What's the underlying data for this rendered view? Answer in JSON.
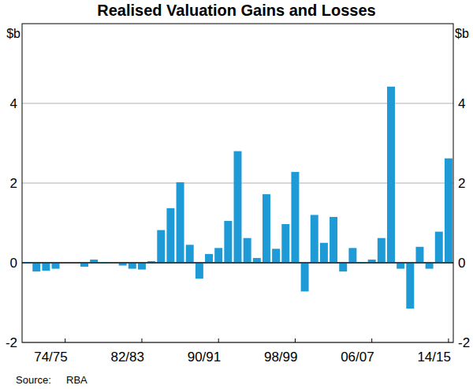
{
  "chart_data": {
    "type": "bar",
    "title": "Realised Valuation Gains and Losses",
    "ylabel": "$b",
    "source_label": "Source:",
    "source": "RBA",
    "categories": [
      null,
      null,
      null,
      null,
      "74/75",
      null,
      null,
      null,
      null,
      null,
      null,
      null,
      "82/83",
      null,
      null,
      null,
      null,
      null,
      null,
      null,
      "90/91",
      null,
      null,
      null,
      null,
      null,
      null,
      null,
      "98/99",
      null,
      null,
      null,
      null,
      null,
      null,
      null,
      "06/07",
      null,
      null,
      null,
      null,
      null,
      null,
      null,
      "14/15"
    ],
    "values": [
      0.02,
      -0.22,
      -0.2,
      -0.15,
      0,
      0,
      -0.1,
      0.08,
      0.02,
      -0.02,
      -0.07,
      -0.15,
      -0.17,
      0.04,
      0.82,
      1.37,
      2.02,
      0.45,
      -0.4,
      0.22,
      0.37,
      1.05,
      2.8,
      0.62,
      0.12,
      1.72,
      0.35,
      0.97,
      2.28,
      -0.72,
      1.2,
      0.5,
      1.15,
      -0.22,
      0.37,
      0.02,
      0.08,
      0.62,
      4.42,
      -0.15,
      -1.15,
      0.4,
      -0.15,
      0.78,
      2.62
    ],
    "color": "#1e9ad6",
    "ylim": [
      -2,
      6
    ],
    "yticks": [
      -2,
      0,
      2,
      4
    ],
    "grid": true
  }
}
